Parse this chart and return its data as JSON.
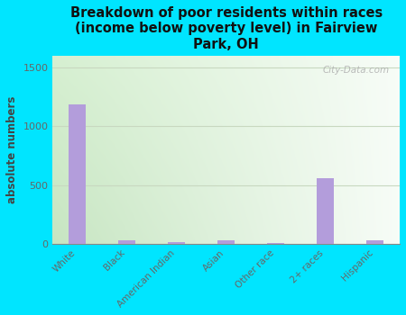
{
  "categories": [
    "White",
    "Black",
    "American Indian",
    "Asian",
    "Other race",
    "2+ races",
    "Hispanic"
  ],
  "values": [
    1190,
    30,
    15,
    30,
    5,
    560,
    30
  ],
  "bar_color": "#b39ddb",
  "title": "Breakdown of poor residents within races\n(income below poverty level) in Fairview\nPark, OH",
  "ylabel": "absolute numbers",
  "ylim": [
    0,
    1600
  ],
  "yticks": [
    0,
    500,
    1000,
    1500
  ],
  "background_outer": "#00e5ff",
  "background_plot_topleft": "#dff0d8",
  "background_plot_topright": "#f5faf5",
  "background_plot_bottomleft": "#c8e6c9",
  "background_plot_bottomright": "#ffffff",
  "grid_color": "#c8d8c0",
  "watermark": "City-Data.com"
}
